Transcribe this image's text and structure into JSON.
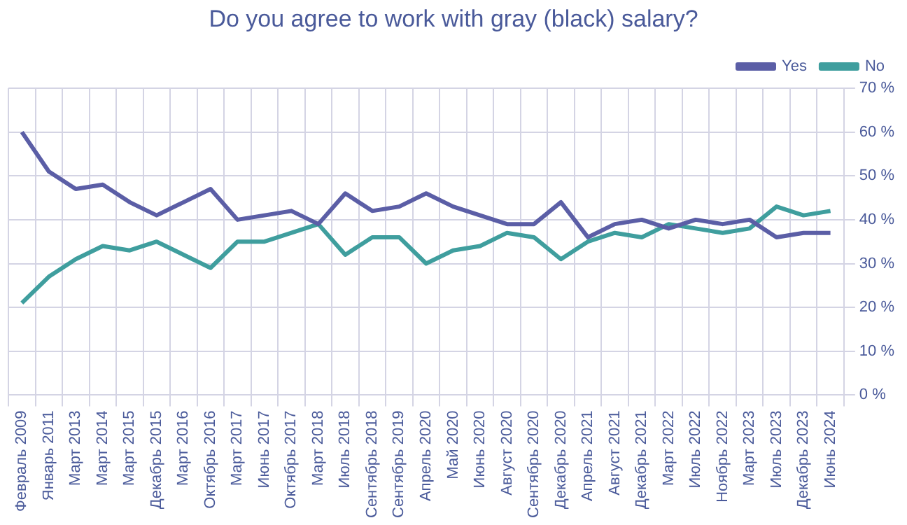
{
  "chart_data": {
    "type": "line",
    "title": "Do you agree to work with gray (black) salary?",
    "categories": [
      "Февраль 2009",
      "Январь 2011",
      "Март 2013",
      "Март 2014",
      "Март 2015",
      "Декабрь 2015",
      "Март 2016",
      "Октябрь 2016",
      "Март 2017",
      "Июнь 2017",
      "Октябрь 2017",
      "Март 2018",
      "Июль 2018",
      "Сентябрь 2018",
      "Сентябрь 2019",
      "Апрель 2020",
      "Май 2020",
      "Июнь 2020",
      "Август 2020",
      "Сентябрь 2020",
      "Декабрь 2020",
      "Апрель 2021",
      "Август 2021",
      "Декабрь 2021",
      "Март 2022",
      "Июль 2022",
      "Ноябрь 2022",
      "Март 2023",
      "Июль 2023",
      "Декабрь 2023",
      "Июнь 2024"
    ],
    "series": [
      {
        "name": "Yes",
        "color": "#5b5ea6",
        "values": [
          60,
          51,
          47,
          48,
          44,
          41,
          44,
          47,
          40,
          41,
          42,
          39,
          46,
          42,
          43,
          46,
          43,
          41,
          39,
          39,
          44,
          36,
          39,
          40,
          38,
          40,
          39,
          40,
          36,
          37,
          37
        ]
      },
      {
        "name": "No",
        "color": "#3f9e9e",
        "values": [
          21,
          27,
          31,
          34,
          33,
          35,
          32,
          29,
          35,
          35,
          37,
          39,
          32,
          36,
          36,
          30,
          33,
          34,
          37,
          36,
          31,
          35,
          37,
          36,
          39,
          38,
          37,
          38,
          43,
          41,
          42
        ]
      }
    ],
    "ylim": [
      0,
      70
    ],
    "yticks": [
      {
        "value": 0,
        "label": "0 %"
      },
      {
        "value": 10,
        "label": "10 %"
      },
      {
        "value": 20,
        "label": "20 %"
      },
      {
        "value": 30,
        "label": "30 %"
      },
      {
        "value": 40,
        "label": "40 %"
      },
      {
        "value": 50,
        "label": "50 %"
      },
      {
        "value": 60,
        "label": "60 %"
      },
      {
        "value": 70,
        "label": "70 %"
      }
    ],
    "grid": true,
    "legend": "top right",
    "marker": "none",
    "line_style": "solid"
  }
}
